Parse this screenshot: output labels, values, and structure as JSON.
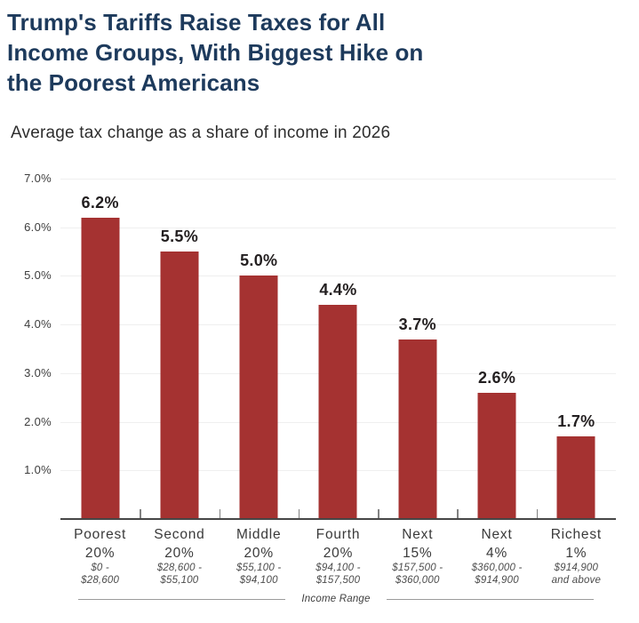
{
  "header": {
    "title_lines": [
      "Trump's Tariffs Raise Taxes for All",
      "Income Groups, With Biggest Hike on",
      "the Poorest Americans"
    ],
    "title_color": "#1d3a5c",
    "subtitle": "Average tax change as a share of income in 2026"
  },
  "chart_data": {
    "type": "bar",
    "title": "Trump's Tariffs Raise Taxes for All Income Groups, With Biggest Hike on the Poorest Americans",
    "subtitle": "Average tax change as a share of income in 2026",
    "xlabel": "Income Range",
    "ylabel": "",
    "ylim": [
      0,
      7
    ],
    "grid": true,
    "legend": false,
    "bar_color": "#a53231",
    "label_color": "#231f20",
    "ytick_labels": [
      "7.0%",
      "6.0%",
      "5.0%",
      "4.0%",
      "3.0%",
      "2.0%",
      "1.0%"
    ],
    "categories": [
      {
        "line1": "Poorest",
        "line2": "20%",
        "range1": "$0 -",
        "range2": "$28,600"
      },
      {
        "line1": "Second",
        "line2": "20%",
        "range1": "$28,600 -",
        "range2": "$55,100"
      },
      {
        "line1": "Middle",
        "line2": "20%",
        "range1": "$55,100 -",
        "range2": "$94,100"
      },
      {
        "line1": "Fourth",
        "line2": "20%",
        "range1": "$94,100 -",
        "range2": "$157,500"
      },
      {
        "line1": "Next",
        "line2": "15%",
        "range1": "$157,500 -",
        "range2": "$360,000"
      },
      {
        "line1": "Next",
        "line2": "4%",
        "range1": "$360,000 -",
        "range2": "$914,900"
      },
      {
        "line1": "Richest",
        "line2": "1%",
        "range1": "$914,900",
        "range2": "and above"
      }
    ],
    "values": [
      6.2,
      5.5,
      5.0,
      4.4,
      3.7,
      2.6,
      1.7
    ],
    "value_labels": [
      "6.2%",
      "5.5%",
      "5.0%",
      "4.4%",
      "3.7%",
      "2.6%",
      "1.7%"
    ]
  }
}
